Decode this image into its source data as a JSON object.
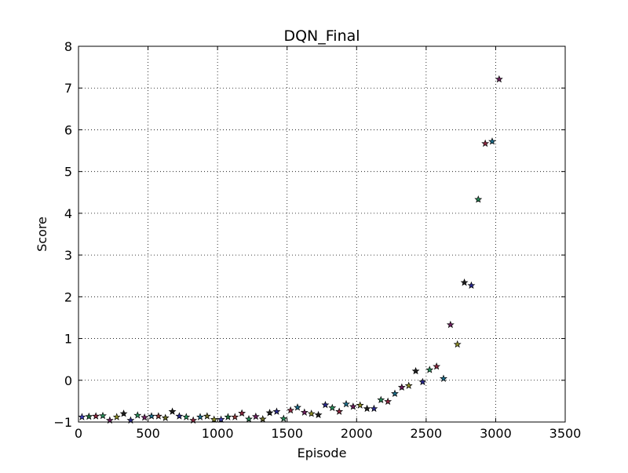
{
  "chart_data": {
    "type": "scatter",
    "title": "DQN_Final",
    "xlabel": "Episode",
    "ylabel": "Score",
    "xlim": [
      0,
      3500
    ],
    "ylim": [
      -1,
      8
    ],
    "xticks": [
      0,
      500,
      1000,
      1500,
      2000,
      2500,
      3000,
      3500
    ],
    "xtick_labels": [
      "0",
      "500",
      "1000",
      "1500",
      "2000",
      "2500",
      "3000",
      "3500"
    ],
    "yticks": [
      -1,
      0,
      1,
      2,
      3,
      4,
      5,
      6,
      7,
      8
    ],
    "ytick_labels": [
      "−1",
      "0",
      "1",
      "2",
      "3",
      "4",
      "5",
      "6",
      "7",
      "8"
    ],
    "grid": true,
    "marker": "star",
    "x": [
      25,
      75,
      125,
      175,
      225,
      275,
      325,
      375,
      425,
      475,
      525,
      575,
      625,
      675,
      725,
      775,
      825,
      875,
      925,
      975,
      1025,
      1075,
      1125,
      1175,
      1225,
      1275,
      1325,
      1375,
      1425,
      1475,
      1525,
      1575,
      1625,
      1675,
      1725,
      1775,
      1825,
      1875,
      1925,
      1975,
      2025,
      2075,
      2125,
      2175,
      2225,
      2275,
      2325,
      2375,
      2425,
      2475,
      2525,
      2575,
      2625,
      2675,
      2725,
      2775,
      2825,
      2875,
      2925,
      2975,
      3025
    ],
    "y": [
      -0.88,
      -0.87,
      -0.86,
      -0.85,
      -0.96,
      -0.88,
      -0.8,
      -0.96,
      -0.84,
      -0.89,
      -0.86,
      -0.86,
      -0.9,
      -0.75,
      -0.86,
      -0.88,
      -0.96,
      -0.88,
      -0.86,
      -0.94,
      -0.94,
      -0.88,
      -0.88,
      -0.79,
      -0.93,
      -0.87,
      -0.93,
      -0.78,
      -0.75,
      -0.92,
      -0.72,
      -0.65,
      -0.77,
      -0.8,
      -0.83,
      -0.59,
      -0.66,
      -0.75,
      -0.57,
      -0.63,
      -0.6,
      -0.68,
      -0.68,
      -0.47,
      -0.51,
      -0.32,
      -0.17,
      -0.13,
      0.22,
      -0.04,
      0.25,
      0.33,
      0.04,
      1.33,
      0.86,
      2.34,
      2.27,
      4.33,
      5.67,
      5.72,
      7.21
    ],
    "colors": [
      "#3c3cb4",
      "#1e6e3c",
      "#8c2840",
      "#2a8c5a",
      "#6e2060",
      "#8c8c28",
      "#1e1e1e",
      "#28288c",
      "#2a8c5a",
      "#6e2060",
      "#1e6e8c",
      "#8c3a3a",
      "#6e6e28",
      "#1e1e1e",
      "#28288c",
      "#2a8c5a",
      "#8c2840",
      "#1e6e8c",
      "#6e6e28",
      "#8c8c28",
      "#3c3cb4",
      "#1e6e3c",
      "#8c3a3a",
      "#8c2840",
      "#2a8c5a",
      "#6e2060",
      "#6e6e28",
      "#1e1e1e",
      "#28288c",
      "#2a8c5a",
      "#8c2840",
      "#1e6e8c",
      "#6e2060",
      "#8c8c28",
      "#1e1e1e",
      "#28288c",
      "#2a8c5a",
      "#8c2840",
      "#1e6e8c",
      "#6e2060",
      "#8c8c28",
      "#1e1e1e",
      "#28288c",
      "#2a8c5a",
      "#8c2840",
      "#1e6e8c",
      "#6e2060",
      "#8c8c28",
      "#1e1e1e",
      "#28288c",
      "#2a8c5a",
      "#8c2840",
      "#1e6e8c",
      "#6e2060",
      "#8c8c28",
      "#1e1e1e",
      "#28288c",
      "#2a8c5a",
      "#8c2840",
      "#1e6e8c",
      "#6e2060"
    ]
  }
}
